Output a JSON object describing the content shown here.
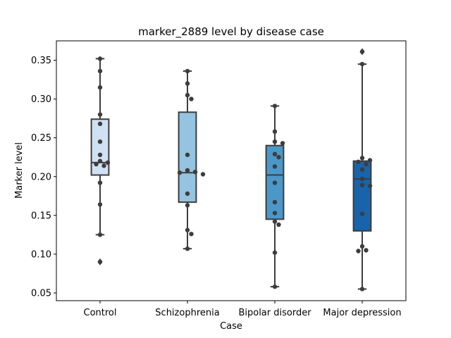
{
  "chart_data": {
    "type": "box",
    "title": "marker_2889 level by disease case",
    "xlabel": "Case",
    "ylabel": "Marker level",
    "ylim": [
      0.04,
      0.375
    ],
    "yticks": [
      "0.05",
      "0.10",
      "0.15",
      "0.20",
      "0.25",
      "0.30",
      "0.35"
    ],
    "categories": [
      "Control",
      "Schizophrenia",
      "Bipolar disorder",
      "Major depression"
    ],
    "colors": [
      "#d0e1f2",
      "#94c4df",
      "#4a98c9",
      "#1764ab"
    ],
    "grid": false,
    "boxes": [
      {
        "q1": 0.202,
        "median": 0.218,
        "q3": 0.274,
        "whisker_low": 0.125,
        "whisker_high": 0.352,
        "outliers": [
          0.09
        ]
      },
      {
        "q1": 0.167,
        "median": 0.205,
        "q3": 0.283,
        "whisker_low": 0.107,
        "whisker_high": 0.336,
        "outliers": []
      },
      {
        "q1": 0.145,
        "median": 0.202,
        "q3": 0.24,
        "whisker_low": 0.058,
        "whisker_high": 0.291,
        "outliers": []
      },
      {
        "q1": 0.13,
        "median": 0.197,
        "q3": 0.22,
        "whisker_low": 0.055,
        "whisker_high": 0.345,
        "outliers": [
          0.361
        ]
      }
    ],
    "points": [
      [
        0.352,
        0.336,
        0.315,
        0.28,
        0.268,
        0.245,
        0.228,
        0.22,
        0.218,
        0.216,
        0.214,
        0.192,
        0.164,
        0.125,
        0.09
      ],
      [
        0.336,
        0.32,
        0.305,
        0.3,
        0.228,
        0.208,
        0.206,
        0.205,
        0.203,
        0.178,
        0.163,
        0.131,
        0.126,
        0.107
      ],
      [
        0.291,
        0.258,
        0.245,
        0.243,
        0.229,
        0.225,
        0.213,
        0.192,
        0.167,
        0.153,
        0.142,
        0.138,
        0.102,
        0.058
      ],
      [
        0.361,
        0.345,
        0.224,
        0.221,
        0.219,
        0.216,
        0.209,
        0.197,
        0.189,
        0.188,
        0.152,
        0.11,
        0.105,
        0.104,
        0.055
      ]
    ]
  }
}
